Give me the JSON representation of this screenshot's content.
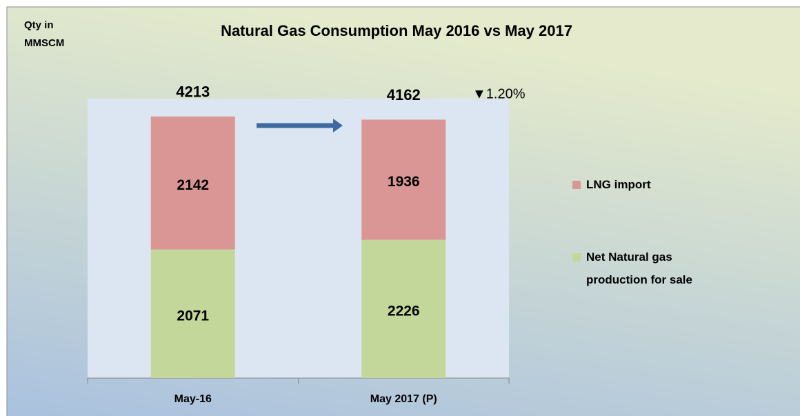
{
  "chart_data": {
    "type": "stacked_bar",
    "title": "Natural Gas Consumption May 2016 vs May 2017",
    "y_label": [
      "Qty in",
      "MMSCM"
    ],
    "categories": [
      "May-16",
      "May 2017 (P)"
    ],
    "series": [
      {
        "name": "Net Natural gas production for sale",
        "color": "#c4d79b",
        "values": [
          2071,
          2226
        ]
      },
      {
        "name": "LNG import",
        "color": "#da9694",
        "values": [
          2142,
          1936
        ]
      }
    ],
    "totals": [
      4213,
      4162
    ],
    "annotation": "▼1.20%",
    "ylim": [
      0,
      4500
    ],
    "legend": "right"
  }
}
